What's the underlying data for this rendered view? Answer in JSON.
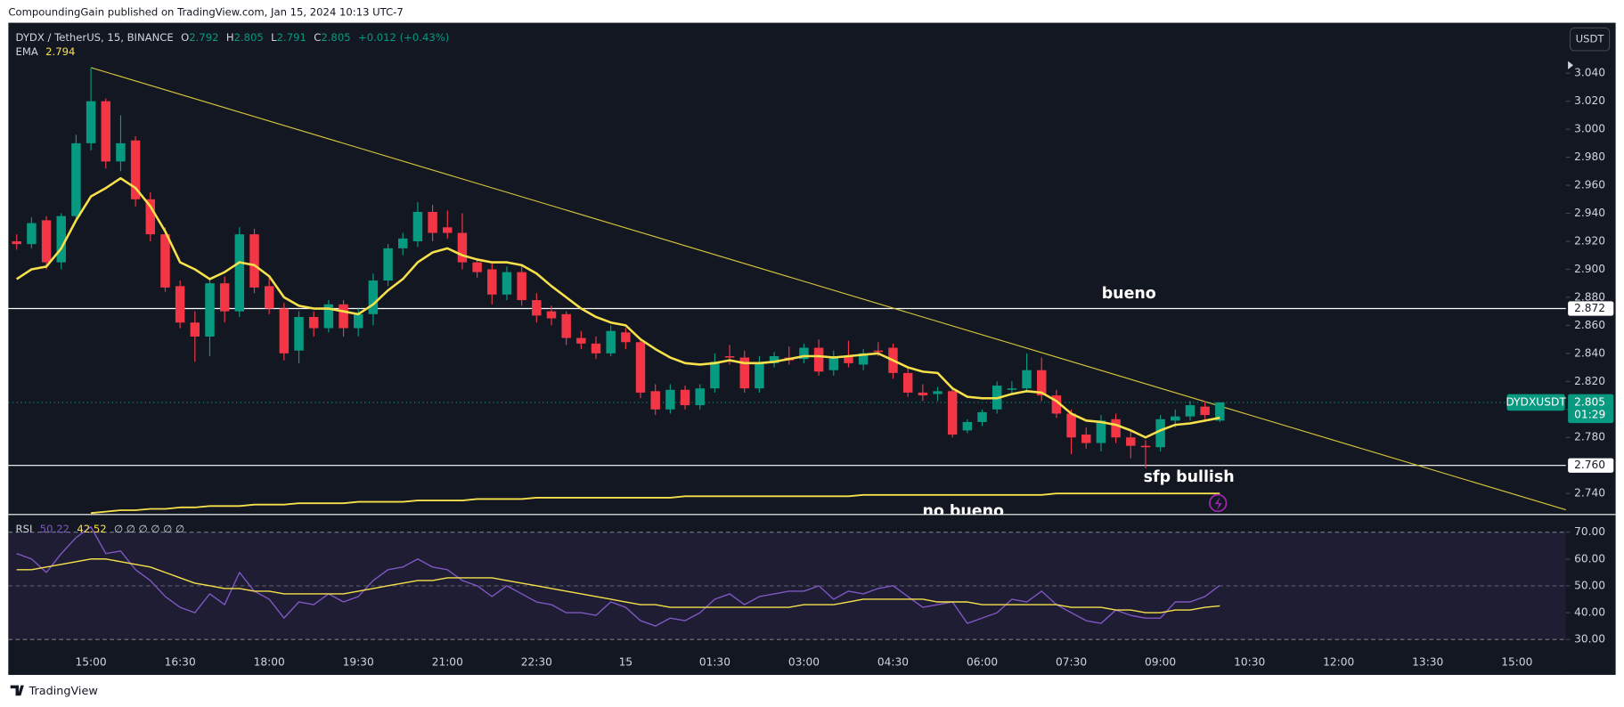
{
  "header": {
    "publisher": "CompoundingGain published on TradingView.com, Jan 15, 2024 10:13 UTC-7",
    "symbol": "DYDX / TetherUS, 15, BINANCE",
    "ohlc_letters": [
      "O",
      "H",
      "L",
      "C"
    ],
    "change": "+0.012 (+0.43%)",
    "currency": "USDT",
    "ticker": "DYDXUSDT",
    "countdown": "01:29",
    "rsi_extra": "∅ ∅ ∅ ∅ ∅ ∅",
    "brand": "TradingView"
  },
  "annotations": [
    "bueno",
    "sfp bullish",
    "no bueno"
  ],
  "chart_data": {
    "type": "candlestick",
    "up_color": "#089981",
    "down_color": "#f23645",
    "open": [
      2.92,
      2.918,
      2.935,
      2.905,
      2.938,
      2.99,
      3.02,
      2.977,
      2.992,
      2.95,
      2.925,
      2.888,
      2.862,
      2.852,
      2.89,
      2.87,
      2.925,
      2.888,
      2.872,
      2.842,
      2.866,
      2.858,
      2.875,
      2.858,
      2.868,
      2.892,
      2.915,
      2.92,
      2.941,
      2.93,
      2.926,
      2.905,
      2.9,
      2.882,
      2.898,
      2.878,
      2.87,
      2.868,
      2.851,
      2.847,
      2.84,
      2.855,
      2.848,
      2.813,
      2.8,
      2.814,
      2.803,
      2.815,
      2.838,
      2.837,
      2.815,
      2.833,
      2.837,
      2.836,
      2.844,
      2.828,
      2.838,
      2.832,
      2.842,
      2.844,
      2.826,
      2.812,
      2.811,
      2.813,
      2.785,
      2.791,
      2.8,
      2.814,
      2.815,
      2.828,
      2.81,
      2.797,
      2.782,
      2.776,
      2.793,
      2.78,
      2.774,
      2.773,
      2.792,
      2.795,
      2.802,
      2.792
    ],
    "high": [
      2.925,
      2.937,
      2.938,
      2.94,
      2.996,
      3.044,
      3.022,
      3.01,
      2.995,
      2.955,
      2.93,
      2.892,
      2.87,
      2.894,
      2.895,
      2.93,
      2.929,
      2.895,
      2.876,
      2.87,
      2.87,
      2.878,
      2.878,
      2.872,
      2.897,
      2.918,
      2.926,
      2.948,
      2.946,
      2.942,
      2.94,
      2.908,
      2.905,
      2.902,
      2.903,
      2.883,
      2.874,
      2.87,
      2.856,
      2.852,
      2.86,
      2.858,
      2.851,
      2.818,
      2.818,
      2.817,
      2.818,
      2.84,
      2.846,
      2.842,
      2.838,
      2.841,
      2.845,
      2.847,
      2.85,
      2.842,
      2.849,
      2.843,
      2.848,
      2.847,
      2.83,
      2.818,
      2.816,
      2.816,
      2.793,
      2.8,
      2.82,
      2.82,
      2.84,
      2.837,
      2.814,
      2.8,
      2.787,
      2.796,
      2.797,
      2.784,
      2.778,
      2.796,
      2.8,
      2.806,
      2.806,
      2.805
    ],
    "low": [
      2.914,
      2.915,
      2.9,
      2.9,
      2.935,
      2.985,
      2.972,
      2.97,
      2.945,
      2.92,
      2.884,
      2.858,
      2.834,
      2.838,
      2.862,
      2.866,
      2.883,
      2.868,
      2.835,
      2.833,
      2.852,
      2.855,
      2.852,
      2.852,
      2.86,
      2.888,
      2.91,
      2.916,
      2.92,
      2.922,
      2.9,
      2.894,
      2.875,
      2.878,
      2.874,
      2.862,
      2.86,
      2.846,
      2.843,
      2.836,
      2.838,
      2.843,
      2.808,
      2.796,
      2.797,
      2.8,
      2.8,
      2.812,
      2.832,
      2.812,
      2.812,
      2.83,
      2.832,
      2.833,
      2.824,
      2.824,
      2.83,
      2.828,
      2.838,
      2.822,
      2.809,
      2.806,
      2.806,
      2.78,
      2.783,
      2.788,
      2.797,
      2.81,
      2.812,
      2.806,
      2.794,
      2.768,
      2.772,
      2.77,
      2.776,
      2.765,
      2.758,
      2.77,
      2.787,
      2.792,
      2.793,
      2.791
    ],
    "close": [
      2.918,
      2.933,
      2.905,
      2.938,
      2.99,
      3.02,
      2.977,
      2.99,
      2.95,
      2.925,
      2.887,
      2.862,
      2.852,
      2.89,
      2.87,
      2.925,
      2.887,
      2.872,
      2.84,
      2.866,
      2.858,
      2.875,
      2.858,
      2.868,
      2.892,
      2.915,
      2.922,
      2.941,
      2.926,
      2.926,
      2.905,
      2.898,
      2.882,
      2.898,
      2.878,
      2.867,
      2.865,
      2.851,
      2.847,
      2.84,
      2.856,
      2.848,
      2.812,
      2.8,
      2.814,
      2.803,
      2.815,
      2.834,
      2.837,
      2.815,
      2.833,
      2.838,
      2.835,
      2.844,
      2.827,
      2.838,
      2.833,
      2.84,
      2.841,
      2.826,
      2.812,
      2.81,
      2.813,
      2.782,
      2.791,
      2.798,
      2.817,
      2.815,
      2.828,
      2.81,
      2.797,
      2.78,
      2.776,
      2.792,
      2.78,
      2.774,
      2.773,
      2.793,
      2.795,
      2.803,
      2.796,
      2.805
    ],
    "ema": {
      "name": "EMA",
      "color": "#f7e14b",
      "values": [
        2.893,
        2.9,
        2.902,
        2.915,
        2.935,
        2.952,
        2.958,
        2.965,
        2.958,
        2.945,
        2.927,
        2.905,
        2.9,
        2.893,
        2.898,
        2.905,
        2.903,
        2.895,
        2.88,
        2.874,
        2.872,
        2.872,
        2.87,
        2.868,
        2.875,
        2.885,
        2.893,
        2.905,
        2.912,
        2.915,
        2.91,
        2.907,
        2.905,
        2.905,
        2.903,
        2.897,
        2.888,
        2.88,
        2.872,
        2.866,
        2.862,
        2.86,
        2.85,
        2.843,
        2.837,
        2.833,
        2.832,
        2.833,
        2.835,
        2.833,
        2.833,
        2.834,
        2.836,
        2.838,
        2.838,
        2.837,
        2.838,
        2.839,
        2.84,
        2.835,
        2.83,
        2.827,
        2.826,
        2.815,
        2.809,
        2.808,
        2.808,
        2.811,
        2.813,
        2.812,
        2.806,
        2.797,
        2.792,
        2.791,
        2.789,
        2.785,
        2.78,
        2.785,
        2.789,
        2.79,
        2.792,
        2.794
      ]
    },
    "overlay": {
      "color": "#f7e14b",
      "values": [
        null,
        null,
        null,
        null,
        null,
        2.726,
        2.727,
        2.728,
        2.728,
        2.729,
        2.729,
        2.73,
        2.73,
        2.731,
        2.731,
        2.731,
        2.732,
        2.732,
        2.732,
        2.733,
        2.733,
        2.733,
        2.733,
        2.734,
        2.734,
        2.734,
        2.734,
        2.735,
        2.735,
        2.735,
        2.735,
        2.736,
        2.736,
        2.736,
        2.736,
        2.737,
        2.737,
        2.737,
        2.737,
        2.737,
        2.737,
        2.737,
        2.737,
        2.737,
        2.737,
        2.738,
        2.738,
        2.738,
        2.738,
        2.738,
        2.738,
        2.738,
        2.738,
        2.738,
        2.738,
        2.738,
        2.738,
        2.739,
        2.739,
        2.739,
        2.739,
        2.739,
        2.739,
        2.739,
        2.739,
        2.739,
        2.739,
        2.739,
        2.739,
        2.739,
        2.74,
        2.74,
        2.74,
        2.74,
        2.74,
        2.74,
        2.74,
        2.74,
        2.74,
        2.74,
        2.74,
        2.74
      ]
    },
    "trendline": {
      "color": "#d4c33a",
      "x": [
        5,
        104.4
      ],
      "y": [
        3.044,
        2.728
      ]
    },
    "hlines": [
      2.872,
      {
        "value": 2.76,
        "label": "2.760"
      }
    ],
    "xlim": [
      -0.56,
      104.3
    ],
    "xticks": [
      {
        "value": 5,
        "label": "15:00"
      },
      {
        "value": 11,
        "label": "16:30"
      },
      {
        "value": 17,
        "label": "18:00"
      },
      {
        "value": 23,
        "label": "19:30"
      },
      {
        "value": 29,
        "label": "21:00"
      },
      {
        "value": 35,
        "label": "22:30"
      },
      {
        "value": 41,
        "label": "15"
      },
      {
        "value": 47,
        "label": "01:30"
      },
      {
        "value": 53,
        "label": "03:00"
      },
      {
        "value": 59,
        "label": "04:30"
      },
      {
        "value": 65,
        "label": "06:00"
      },
      {
        "value": 71,
        "label": "07:30"
      },
      {
        "value": 77,
        "label": "09:00"
      },
      {
        "value": 83,
        "label": "10:30"
      },
      {
        "value": 89,
        "label": "12:00"
      },
      {
        "value": 95,
        "label": "13:30"
      },
      {
        "value": 101,
        "label": "15:00"
      }
    ],
    "ylim": [
      2.725,
      3.076
    ],
    "yticks": [
      {
        "value": 2.74,
        "label": "2.740"
      },
      {
        "value": 2.78,
        "label": "2.780"
      },
      2.8,
      {
        "value": 2.8,
        "label": "2.800"
      },
      {
        "value": 2.82,
        "label": "2.820"
      },
      {
        "value": 2.84,
        "label": "2.840"
      },
      {
        "value": 2.86,
        "label": "2.860"
      },
      {
        "value": 2.88,
        "label": "2.880"
      },
      {
        "value": 2.9,
        "label": "2.900"
      },
      {
        "value": 2.92,
        "label": "2.920"
      },
      {
        "value": 2.94,
        "label": "2.940"
      },
      {
        "value": 2.96,
        "label": "2.960"
      },
      {
        "value": 2.98,
        "label": "2.980"
      },
      {
        "value": 3.0,
        "label": "3.000"
      },
      {
        "value": 3.02,
        "label": "3.020"
      },
      {
        "value": 3.04,
        "label": "3.040"
      }
    ],
    "rsi": {
      "name": "RSI",
      "color": "#7e57c2",
      "values": [
        62,
        60,
        55,
        62,
        68,
        72,
        62,
        63,
        56,
        52,
        46,
        42,
        40,
        47,
        43,
        55,
        48,
        45,
        38,
        44,
        43,
        47,
        44,
        46,
        52,
        56,
        57,
        60,
        57,
        56,
        52,
        50,
        46,
        50,
        47,
        44,
        43,
        40,
        40,
        39,
        44,
        42,
        37,
        35,
        38,
        37,
        40,
        45,
        47,
        43,
        46,
        47,
        48,
        48,
        50,
        45,
        48,
        47,
        49,
        50,
        46,
        42,
        43,
        44,
        36,
        38,
        40,
        45,
        44,
        48,
        43,
        40,
        37,
        36,
        41,
        39,
        38,
        38,
        44,
        44,
        46,
        50.22
      ]
    },
    "rsi_ma": {
      "color": "#f7e14b",
      "values": [
        56,
        56,
        57,
        58,
        59,
        60,
        60,
        59,
        58,
        57,
        55,
        53,
        51,
        50,
        49,
        49,
        48,
        48,
        47,
        47,
        47,
        47,
        47,
        48,
        49,
        50,
        51,
        52,
        52,
        53,
        53,
        53,
        53,
        52,
        51,
        50,
        49,
        48,
        47,
        46,
        45,
        44,
        43,
        43,
        42,
        42,
        42,
        42,
        42,
        42,
        42,
        42,
        42,
        43,
        43,
        43,
        44,
        45,
        45,
        45,
        45,
        45,
        44,
        44,
        44,
        43,
        43,
        43,
        43,
        43,
        43,
        42,
        42,
        42,
        41,
        41,
        40,
        40,
        41,
        41,
        42,
        42.52
      ]
    },
    "rsi_band": [
      30,
      70
    ],
    "rsi_mid": 50,
    "rsi_lim": [
      16.8,
      76.6
    ],
    "rsi_ticks": [
      {
        "value": 70,
        "label": "70.00"
      },
      {
        "value": 60,
        "label": "60.00"
      },
      {
        "value": 50,
        "label": "50.00"
      },
      {
        "value": 40,
        "label": "40.00"
      },
      {
        "value": 30,
        "label": "30.00"
      }
    ]
  }
}
